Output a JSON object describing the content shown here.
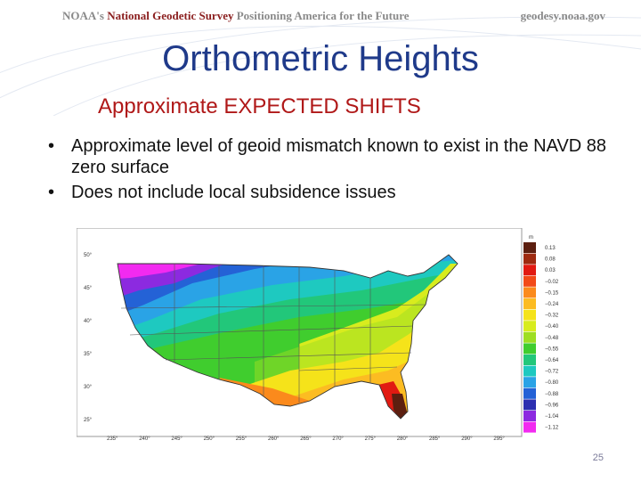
{
  "banner": {
    "left_prefix": "NOAA's ",
    "left_agency": "National Geodetic Survey",
    "left_tagline": " Positioning America for the Future",
    "right": "geodesy.noaa.gov"
  },
  "title": "Orthometric Heights",
  "subtitle": "Approximate EXPECTED SHIFTS",
  "bullets": [
    "Approximate level of geoid mismatch known to exist in the NAVD 88 zero surface",
    "Does not include local subsidence issues"
  ],
  "map": {
    "unit": "m",
    "lat_labels": [
      "50°",
      "45°",
      "40°",
      "35°",
      "30°",
      "25°"
    ],
    "lon_labels": [
      "235°",
      "240°",
      "245°",
      "250°",
      "255°",
      "260°",
      "265°",
      "270°",
      "275°",
      "280°",
      "285°",
      "290°",
      "295°"
    ],
    "legend": [
      {
        "label": "0.13",
        "color": "#5c1f10"
      },
      {
        "label": "0.08",
        "color": "#9e2a10"
      },
      {
        "label": "0.03",
        "color": "#e11a12"
      },
      {
        "label": "−0.02",
        "color": "#f24a18"
      },
      {
        "label": "−0.15",
        "color": "#fb8a1c"
      },
      {
        "label": "−0.24",
        "color": "#fcbc22"
      },
      {
        "label": "−0.32",
        "color": "#f5e31a"
      },
      {
        "label": "−0.40",
        "color": "#d8ec1e"
      },
      {
        "label": "−0.48",
        "color": "#9ede22"
      },
      {
        "label": "−0.55",
        "color": "#40cd2e"
      },
      {
        "label": "−0.64",
        "color": "#22c77a"
      },
      {
        "label": "−0.72",
        "color": "#1ec9c0"
      },
      {
        "label": "−0.80",
        "color": "#2aa3e6"
      },
      {
        "label": "−0.88",
        "color": "#2462d6"
      },
      {
        "label": "−0.96",
        "color": "#2c2fb0"
      },
      {
        "label": "−1.04",
        "color": "#8c2ae0"
      },
      {
        "label": "−1.12",
        "color": "#f22af0"
      }
    ]
  },
  "page_number": "25"
}
